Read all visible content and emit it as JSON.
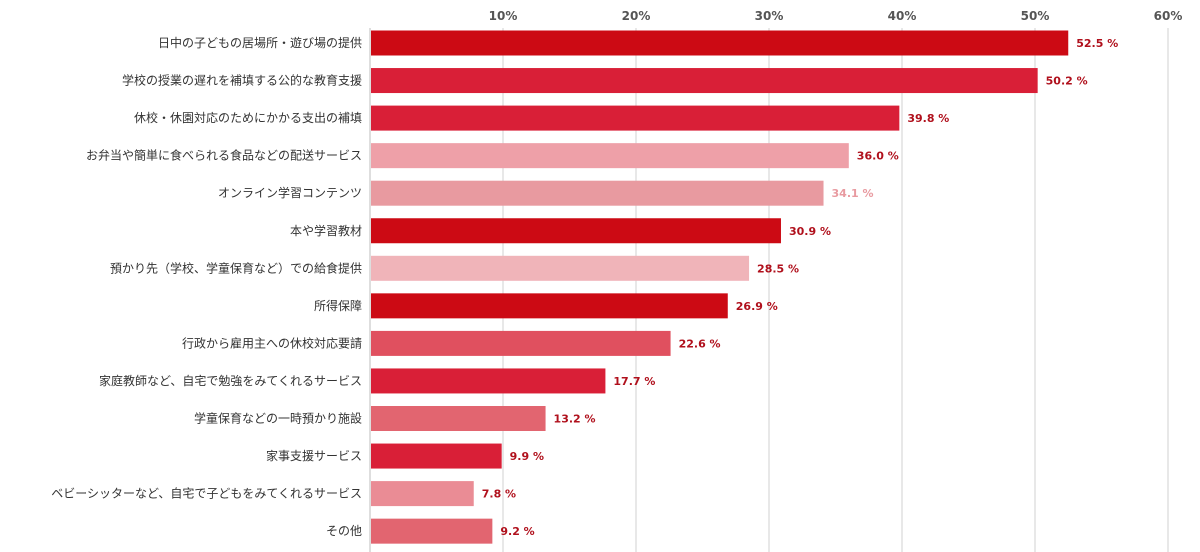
{
  "chart_data": {
    "type": "bar",
    "orientation": "horizontal",
    "xlim": [
      0,
      60
    ],
    "ticks": [
      {
        "value": 10,
        "label": "10%"
      },
      {
        "value": 20,
        "label": "20%"
      },
      {
        "value": 30,
        "label": "30%"
      },
      {
        "value": 40,
        "label": "40%"
      },
      {
        "value": 50,
        "label": "50%"
      },
      {
        "value": 60,
        "label": "60%"
      }
    ],
    "grid": true,
    "legend": "none",
    "value_suffix": " %",
    "categories": [
      "日中の子どもの居場所・遊び場の提供",
      "学校の授業の遅れを補填する公的な教育支援",
      "休校・休園対応のためにかかる支出の補填",
      "お弁当や簡単に食べられる食品などの配送サービス",
      "オンライン学習コンテンツ",
      "本や学習教材",
      "預かり先（学校、学童保育など）での給食提供",
      "所得保障",
      "行政から雇用主への休校対応要請",
      "家庭教師など、自宅で勉強をみてくれるサービス",
      "学童保育などの一時預かり施設",
      "家事支援サービス",
      "ベビーシッターなど、自宅で子どもをみてくれるサービス",
      "その他"
    ],
    "values": [
      52.5,
      50.2,
      39.8,
      36.0,
      34.1,
      30.9,
      28.5,
      26.9,
      22.6,
      17.7,
      13.2,
      9.9,
      7.8,
      9.2
    ],
    "value_labels": [
      "52.5",
      "50.2",
      "39.8",
      "36.0",
      "34.1",
      "30.9",
      "28.5",
      "26.9",
      "22.6",
      "17.7",
      "13.2",
      "9.9",
      "7.8",
      "9.2"
    ],
    "bar_colors": [
      "#cc0a14",
      "#d91f37",
      "#d91f37",
      "#eea0a8",
      "#e89aa0",
      "#cc0a14",
      "#f0b4b9",
      "#cc0a14",
      "#e0505f",
      "#d91f37",
      "#e26570",
      "#d91f37",
      "#ea8c95",
      "#e26570"
    ],
    "label_colors": [
      "#b0101c",
      "#b0101c",
      "#b0101c",
      "#b0101c",
      "#e89aa0",
      "#b0101c",
      "#b0101c",
      "#b0101c",
      "#b0101c",
      "#b0101c",
      "#b0101c",
      "#b0101c",
      "#b0101c",
      "#b0101c"
    ]
  }
}
